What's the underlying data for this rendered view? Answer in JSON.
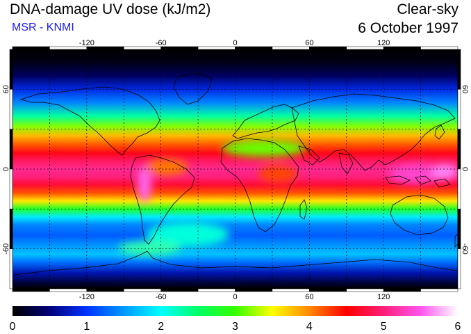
{
  "header": {
    "title": "DNA-damage UV dose (kJ/m2)",
    "source": "MSR - KNMI",
    "condition": "Clear-sky",
    "date": "6 October 1997"
  },
  "map": {
    "lon_ticks": [
      -120,
      -60,
      0,
      60,
      120
    ],
    "lat_ticks": [
      60,
      0,
      -60
    ],
    "lon_range": [
      -180,
      180
    ],
    "lat_range": [
      -90,
      90
    ],
    "grid": "dotted",
    "grid_lon": [
      -150,
      -120,
      -90,
      -60,
      -30,
      0,
      30,
      60,
      90,
      120,
      150
    ],
    "grid_lat": [
      -60,
      -30,
      0,
      30,
      60
    ]
  },
  "colorbar": {
    "min": 0,
    "max": 6,
    "tick_labels": [
      "0",
      "1",
      "2",
      "3",
      "4",
      "5",
      "6"
    ],
    "stops": [
      {
        "value": 0.0,
        "color": "#000000"
      },
      {
        "value": 0.5,
        "color": "#00007a"
      },
      {
        "value": 1.0,
        "color": "#0033ff"
      },
      {
        "value": 1.5,
        "color": "#0099ff"
      },
      {
        "value": 2.0,
        "color": "#00ffff"
      },
      {
        "value": 2.5,
        "color": "#00ff66"
      },
      {
        "value": 3.0,
        "color": "#33ff00"
      },
      {
        "value": 3.5,
        "color": "#ffff00"
      },
      {
        "value": 4.0,
        "color": "#ff8800"
      },
      {
        "value": 4.5,
        "color": "#ff0000"
      },
      {
        "value": 5.0,
        "color": "#ff1f7a"
      },
      {
        "value": 5.5,
        "color": "#ff55ee"
      },
      {
        "value": 6.0,
        "color": "#ffffff"
      }
    ]
  },
  "colors": {
    "text": "#000000",
    "source_text": "#1a1aff",
    "coastline": "#000000"
  }
}
